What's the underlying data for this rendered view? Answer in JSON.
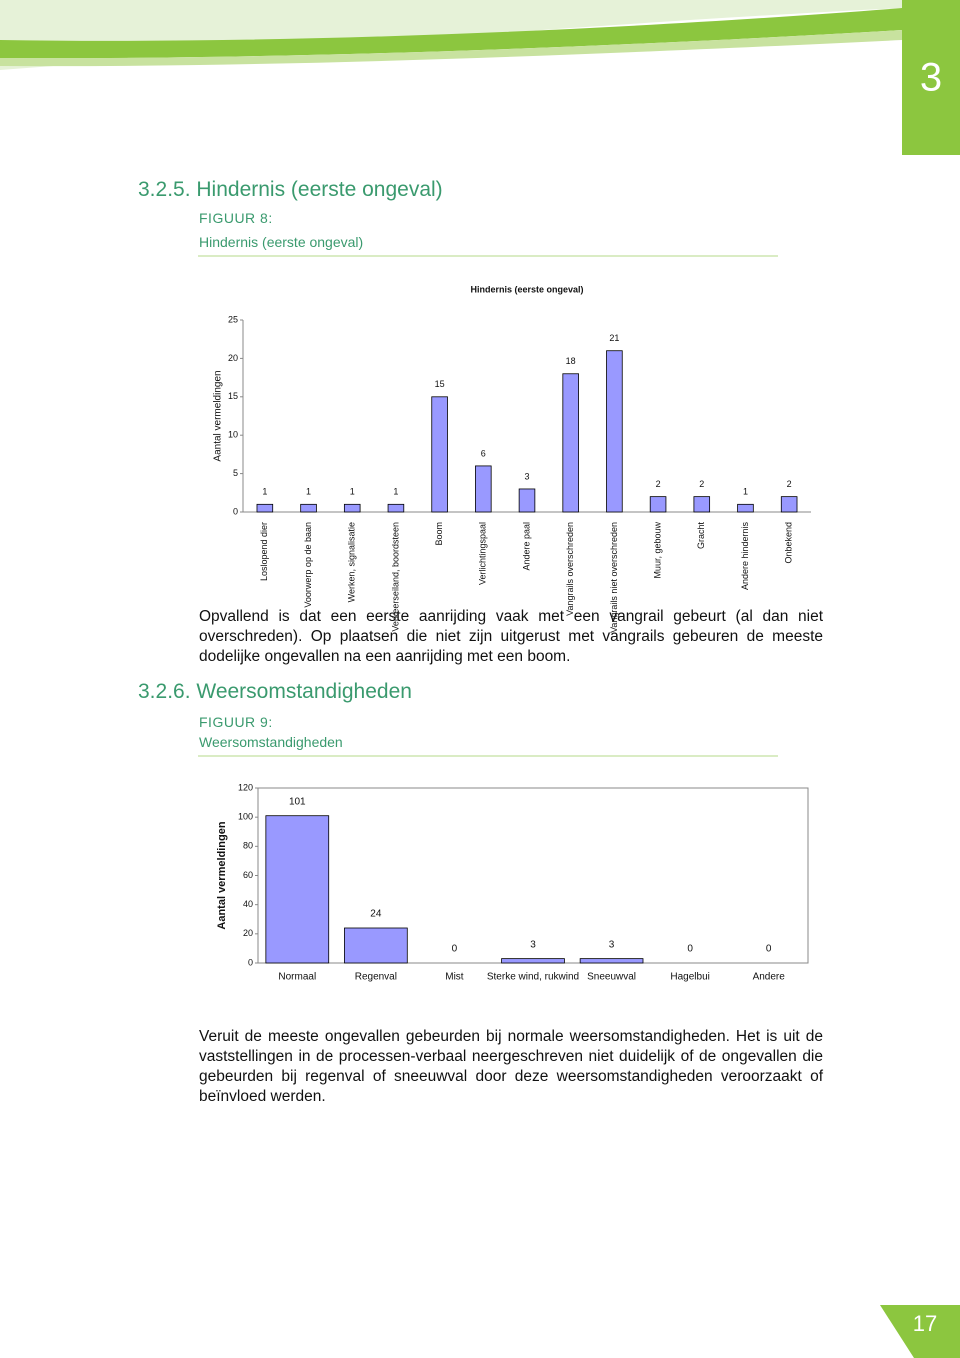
{
  "header": {
    "chapter": "3"
  },
  "sections": [
    {
      "heading": "3.2.5. Hindernis (eerste ongeval)",
      "figure_label": "FIGUUR 8:",
      "figure_title": "Hindernis (eerste ongeval)",
      "paragraph": "Opvallend is dat een eerste aanrijding vaak met een vangrail gebeurt (al dan niet overschreden). Op plaatsen die niet zijn uitgerust met vangrails gebeuren de meeste dodelijke ongevallen na een aanrijding met een boom."
    },
    {
      "heading": "3.2.6. Weersomstandigheden",
      "figure_label": "FIGUUR 9:",
      "figure_title": "Weersomstandigheden",
      "paragraph": "Veruit de meeste ongevallen gebeurden bij normale weersomstandigheden. Het is uit de vaststellingen in de processen-verbaal neergeschreven niet duidelijk of de ongevallen die gebeurden bij regenval of sneeuwval door deze weersomstandigheden veroorzaakt of beïnvloed werden."
    }
  ],
  "chart_data": [
    {
      "type": "bar",
      "title": "Hindernis (eerste ongeval)",
      "y_label": "Aantal vermeldingen",
      "categories": [
        "Loslopend dier",
        "Voorwerp op de baan",
        "Werken, signalisatie",
        "Verkeerseiland, boordsteen",
        "Boom",
        "Verlichtingspaal",
        "Andere paal",
        "Vangrails overschreden",
        "Vangrails niet overschreden",
        "Muur, gebouw",
        "Gracht",
        "Andere hindernis",
        "Onbekend"
      ],
      "values": [
        1,
        1,
        1,
        1,
        15,
        6,
        3,
        18,
        21,
        2,
        2,
        1,
        2
      ],
      "color": "#9999ff",
      "ylim": [
        0,
        25
      ],
      "yticks": [
        0,
        5,
        10,
        15,
        20,
        25
      ],
      "grid": false
    },
    {
      "type": "bar",
      "y_label": "Aantal vermeldingen",
      "categories": [
        "Normaal",
        "Regenval",
        "Mist",
        "Sterke wind, rukwind",
        "Sneeuwval",
        "Hagelbui",
        "Andere"
      ],
      "values": [
        101,
        24,
        0,
        3,
        3,
        0,
        0
      ],
      "color": "#9999ff",
      "ylim": [
        0,
        120
      ],
      "yticks": [
        0,
        20,
        40,
        60,
        80,
        100,
        120
      ],
      "grid": false
    }
  ],
  "footer": {
    "page_number": "17"
  }
}
